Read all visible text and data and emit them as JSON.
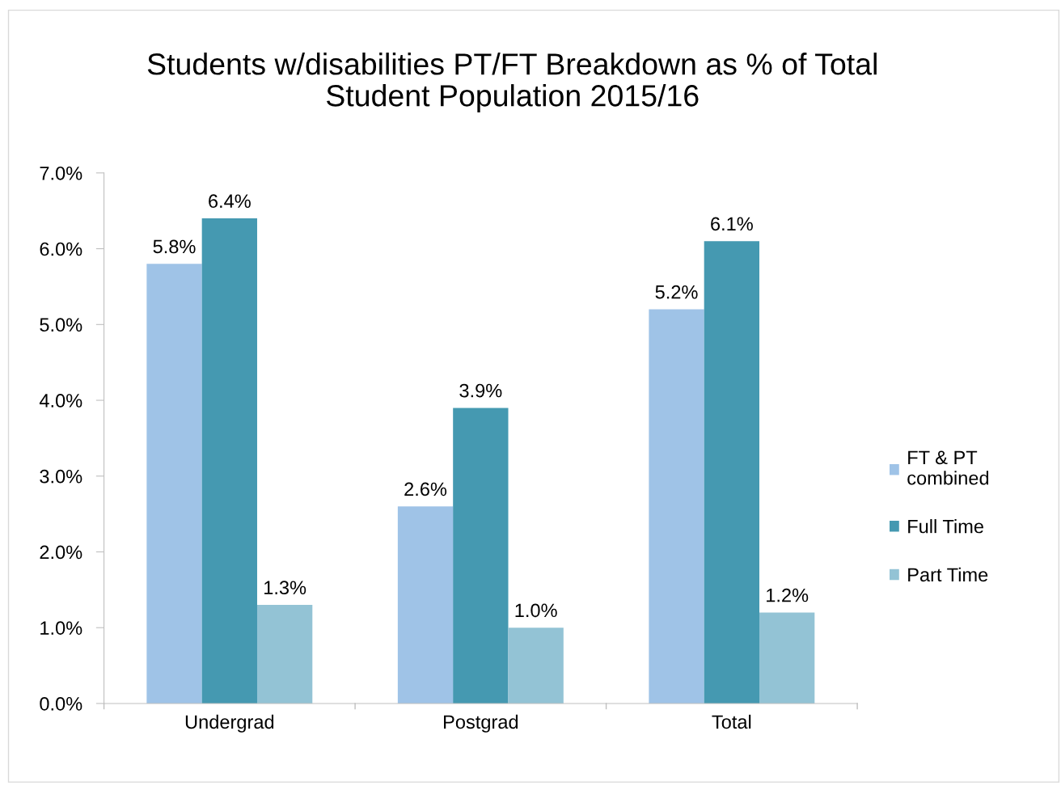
{
  "chart_data": {
    "type": "bar",
    "title": "Students w/disabilities PT/FT Breakdown as % of Total\nStudent Population 2015/16",
    "categories": [
      "Undergrad",
      "Postgrad",
      "Total"
    ],
    "series": [
      {
        "name": "FT & PT\ncombined",
        "color": "#9fc3e7",
        "values": [
          5.8,
          2.6,
          5.2
        ],
        "value_labels": [
          "5.8%",
          "2.6%",
          "5.2%"
        ]
      },
      {
        "name": "Full Time",
        "color": "#4599b1",
        "values": [
          6.4,
          3.9,
          6.1
        ],
        "value_labels": [
          "6.4%",
          "3.9%",
          "6.1%"
        ]
      },
      {
        "name": "Part Time",
        "color": "#93c3d5",
        "values": [
          1.3,
          1.0,
          1.2
        ],
        "value_labels": [
          "1.3%",
          "1.0%",
          "1.2%"
        ]
      }
    ],
    "ylim": [
      0,
      7
    ],
    "yticks": [
      {
        "value": 0,
        "label": "0.0%"
      },
      {
        "value": 1,
        "label": "1.0%"
      },
      {
        "value": 2,
        "label": "2.0%"
      },
      {
        "value": 3,
        "label": "3.0%"
      },
      {
        "value": 4,
        "label": "4.0%"
      },
      {
        "value": 5,
        "label": "5.0%"
      },
      {
        "value": 6,
        "label": "6.0%"
      },
      {
        "value": 7,
        "label": "7.0%"
      }
    ],
    "grid": false,
    "legend": "right"
  }
}
